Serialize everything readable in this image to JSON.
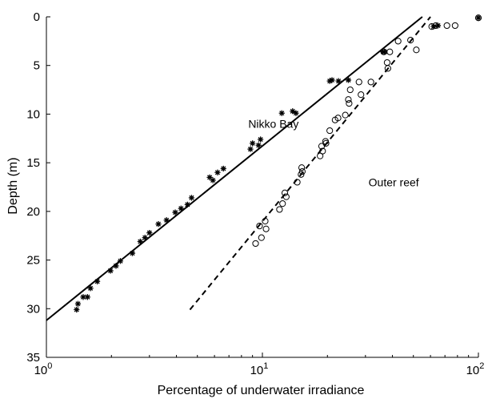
{
  "chart_data": {
    "type": "scatter",
    "x_scale": "log",
    "y_reversed": true,
    "xlabel": "Percentage of underwater irradiance",
    "ylabel": "Depth (m)",
    "xlim": [
      1,
      100
    ],
    "ylim": [
      0,
      35
    ],
    "x_ticks": [
      {
        "value": 1,
        "base": "10",
        "exp": "0"
      },
      {
        "value": 10,
        "base": "10",
        "exp": "1"
      },
      {
        "value": 100,
        "base": "10",
        "exp": "2"
      }
    ],
    "y_ticks": [
      "0",
      "5",
      "10",
      "15",
      "20",
      "25",
      "30",
      "35"
    ],
    "grid": false,
    "annotations": [
      {
        "text": "Nikko Bay",
        "x": 8.6,
        "y": 11.0
      },
      {
        "text": "Outer reef",
        "x": 31,
        "y": 17.0
      }
    ],
    "series": [
      {
        "marker": "asterisk",
        "points": [
          [
            1.38,
            30.1
          ],
          [
            1.4,
            29.5
          ],
          [
            1.48,
            28.8
          ],
          [
            1.55,
            28.8
          ],
          [
            1.6,
            27.9
          ],
          [
            1.72,
            27.2
          ],
          [
            1.98,
            26.1
          ],
          [
            2.1,
            25.6
          ],
          [
            2.2,
            25.1
          ],
          [
            2.5,
            24.3
          ],
          [
            2.72,
            23.1
          ],
          [
            2.86,
            22.7
          ],
          [
            3.0,
            22.2
          ],
          [
            3.3,
            21.3
          ],
          [
            3.6,
            20.9
          ],
          [
            3.95,
            20.1
          ],
          [
            4.2,
            19.7
          ],
          [
            4.5,
            19.3
          ],
          [
            4.7,
            18.6
          ],
          [
            5.7,
            16.5
          ],
          [
            5.9,
            16.8
          ],
          [
            6.2,
            16.0
          ],
          [
            6.6,
            15.6
          ],
          [
            8.8,
            13.6
          ],
          [
            9.0,
            13.0
          ],
          [
            9.6,
            13.2
          ],
          [
            9.8,
            12.6
          ],
          [
            12.3,
            9.9
          ],
          [
            13.8,
            9.7
          ],
          [
            14.3,
            9.9
          ],
          [
            20.5,
            6.6
          ],
          [
            21.0,
            6.5
          ],
          [
            22.5,
            6.6
          ],
          [
            25.0,
            6.5
          ],
          [
            36.2,
            3.6
          ],
          [
            36.8,
            3.6
          ],
          [
            62.0,
            1.0
          ],
          [
            65.0,
            0.9
          ],
          [
            100,
            0.1
          ]
        ]
      },
      {
        "marker": "circle",
        "points": [
          [
            9.3,
            23.3
          ],
          [
            9.9,
            22.7
          ],
          [
            9.7,
            21.5
          ],
          [
            10.4,
            21.8
          ],
          [
            10.3,
            21.0
          ],
          [
            12.0,
            19.8
          ],
          [
            12.4,
            19.2
          ],
          [
            12.9,
            18.5
          ],
          [
            12.7,
            18.1
          ],
          [
            14.5,
            17.0
          ],
          [
            15.1,
            16.2
          ],
          [
            15.2,
            15.5
          ],
          [
            15.3,
            15.9
          ],
          [
            18.5,
            14.3
          ],
          [
            19.0,
            13.8
          ],
          [
            18.8,
            13.3
          ],
          [
            19.6,
            12.8
          ],
          [
            19.7,
            13.0
          ],
          [
            20.5,
            11.7
          ],
          [
            21.7,
            10.6
          ],
          [
            22.4,
            10.4
          ],
          [
            24.2,
            10.1
          ],
          [
            25.2,
            8.9
          ],
          [
            25.0,
            8.5
          ],
          [
            28.6,
            8.0
          ],
          [
            25.5,
            7.5
          ],
          [
            28.0,
            6.7
          ],
          [
            31.8,
            6.7
          ],
          [
            38.1,
            5.3
          ],
          [
            37.8,
            4.7
          ],
          [
            36.5,
            3.6
          ],
          [
            38.9,
            3.6
          ],
          [
            42.5,
            2.5
          ],
          [
            48.5,
            2.4
          ],
          [
            51.6,
            3.4
          ],
          [
            60.8,
            1.0
          ],
          [
            63.5,
            0.9
          ],
          [
            71.5,
            0.9
          ],
          [
            78.0,
            0.9
          ],
          [
            100,
            0.1
          ]
        ]
      }
    ],
    "fit_lines": [
      {
        "style": "solid",
        "x": [
          1,
          55.0
        ],
        "y": [
          31.2,
          0.0
        ]
      },
      {
        "style": "dashed",
        "x": [
          4.62,
          60.0
        ],
        "y": [
          30.1,
          0.0
        ]
      }
    ]
  }
}
